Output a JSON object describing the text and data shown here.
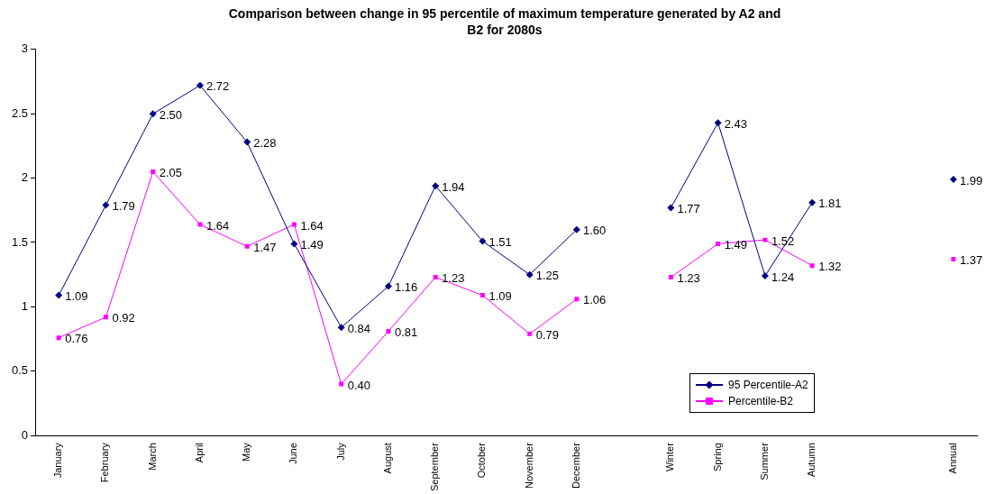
{
  "chart_data": {
    "type": "line",
    "title": "Comparison between change in 95 percentile of maximum temperature generated by A2 and B2 for 2080s",
    "categories": [
      "January",
      "February",
      "March",
      "April",
      "May",
      "June",
      "July",
      "August",
      "September",
      "October",
      "November",
      "December",
      null,
      "Winter",
      "Spring",
      "Summer",
      "Autumn",
      null,
      null,
      "Annual"
    ],
    "series": [
      {
        "name": "95 Percentile-A2",
        "color": "#000080",
        "marker": "diamond",
        "values": [
          1.09,
          1.79,
          2.5,
          2.72,
          2.28,
          1.49,
          0.84,
          1.16,
          1.94,
          1.51,
          1.25,
          1.6,
          null,
          1.77,
          2.43,
          1.24,
          1.81,
          null,
          null,
          1.99
        ],
        "value_labels": [
          "1.09",
          "1.79",
          "2.50",
          "2.72",
          "2.28",
          "1.49",
          "0.84",
          "1.16",
          "1.94",
          "1.51",
          "1.25",
          "1.60",
          null,
          "1.77",
          "2.43",
          "1.24",
          "1.81",
          null,
          null,
          "1.99"
        ]
      },
      {
        "name": "Percentile-B2",
        "color": "#ff00ff",
        "marker": "square",
        "values": [
          0.76,
          0.92,
          2.05,
          1.64,
          1.47,
          1.64,
          0.4,
          0.81,
          1.23,
          1.09,
          0.79,
          1.06,
          null,
          1.23,
          1.49,
          1.52,
          1.32,
          null,
          null,
          1.37
        ],
        "value_labels": [
          "0.76",
          "0.92",
          "2.05",
          "1.64",
          "1.47",
          "1.64",
          "0.40",
          "0.81",
          "1.23",
          "1.09",
          "0.79",
          "1.06",
          null,
          "1.23",
          "1.49",
          "1.52",
          "1.32",
          null,
          null,
          "1.37"
        ]
      }
    ],
    "ylim": [
      0,
      3
    ],
    "yticks": [
      0,
      0.5,
      1,
      1.5,
      2,
      2.5,
      3
    ],
    "grid": false,
    "legend": "bottom right"
  }
}
